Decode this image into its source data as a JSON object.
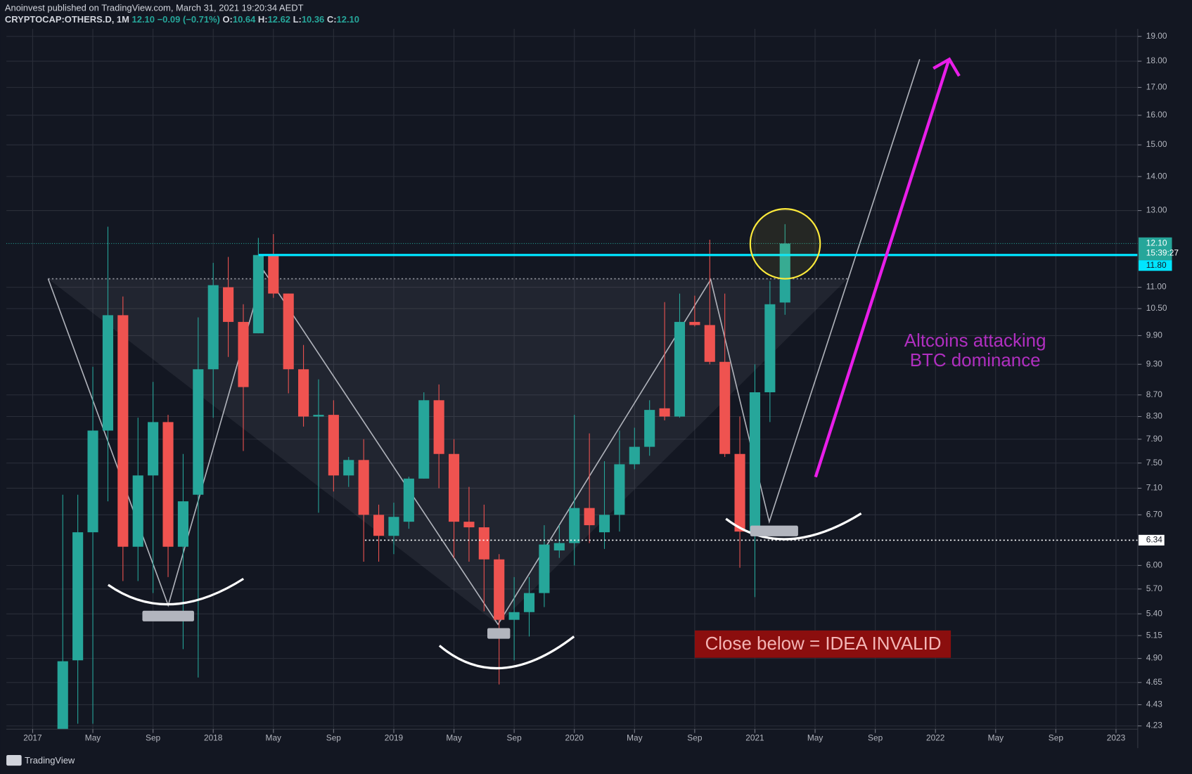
{
  "header": {
    "publisher": "Anoinvest published on TradingView.com, March 31, 2021 19:20:34 AEDT",
    "symbol": "CRYPTOCAP:OTHERS.D, 1M",
    "last": "12.10",
    "change": "−0.09 (−0.71%)",
    "ohlc": [
      {
        "key": "O:",
        "value": "10.64"
      },
      {
        "key": "H:",
        "value": "12.62"
      },
      {
        "key": "L:",
        "value": "10.36"
      },
      {
        "key": "C:",
        "value": "12.10"
      }
    ]
  },
  "chart_data": {
    "type": "candlestick",
    "log_scale": true,
    "grid": true,
    "up_color": "#26a69a",
    "down_color": "#ef5350",
    "x": [
      "2017-03",
      "2017-04",
      "2017-05",
      "2017-06",
      "2017-07",
      "2017-08",
      "2017-09",
      "2017-10",
      "2017-11",
      "2017-12",
      "2018-01",
      "2018-02",
      "2018-03",
      "2018-04",
      "2018-05",
      "2018-06",
      "2018-07",
      "2018-08",
      "2018-09",
      "2018-10",
      "2018-11",
      "2018-12",
      "2019-01",
      "2019-02",
      "2019-03",
      "2019-04",
      "2019-05",
      "2019-06",
      "2019-07",
      "2019-08",
      "2019-09",
      "2019-10",
      "2019-11",
      "2019-12",
      "2020-01",
      "2020-02",
      "2020-03",
      "2020-04",
      "2020-05",
      "2020-06",
      "2020-07",
      "2020-08",
      "2020-09",
      "2020-10",
      "2020-11",
      "2020-12",
      "2021-01",
      "2021-02",
      "2021-03"
    ],
    "open": [
      4.1,
      4.88,
      6.45,
      8.05,
      10.35,
      6.25,
      7.3,
      8.2,
      6.25,
      7.0,
      9.2,
      11.0,
      10.2,
      9.95,
      11.8,
      10.85,
      9.2,
      8.3,
      8.33,
      7.3,
      7.55,
      6.7,
      6.4,
      6.6,
      7.25,
      8.6,
      7.65,
      6.6,
      6.52,
      6.08,
      5.33,
      5.42,
      5.65,
      6.2,
      6.3,
      6.8,
      6.45,
      6.7,
      7.48,
      7.77,
      8.45,
      8.3,
      10.2,
      10.13,
      9.35,
      7.65,
      6.46,
      8.75,
      10.64
    ],
    "high": [
      7.0,
      7.0,
      9.25,
      12.55,
      10.78,
      8.28,
      8.95,
      8.33,
      7.65,
      10.3,
      11.6,
      11.75,
      10.6,
      12.25,
      12.35,
      10.85,
      9.7,
      9.0,
      8.6,
      7.6,
      7.9,
      6.85,
      6.88,
      7.28,
      8.75,
      8.9,
      7.9,
      7.12,
      6.85,
      6.15,
      5.85,
      5.85,
      6.55,
      6.55,
      8.33,
      8.0,
      7.53,
      8.05,
      8.1,
      8.6,
      10.65,
      10.85,
      10.8,
      12.2,
      10.85,
      8.3,
      9.3,
      11.15,
      12.62
    ],
    "low": [
      4.0,
      4.25,
      4.25,
      6.9,
      5.8,
      5.8,
      5.65,
      5.85,
      5.0,
      4.7,
      8.28,
      9.45,
      7.7,
      9.95,
      10.75,
      8.73,
      8.12,
      6.73,
      7.05,
      7.12,
      6.05,
      6.05,
      6.15,
      6.5,
      7.25,
      7.1,
      6.1,
      6.05,
      5.43,
      4.63,
      4.88,
      5.14,
      5.48,
      6.1,
      6.0,
      6.3,
      6.22,
      6.46,
      7.4,
      7.62,
      8.23,
      8.28,
      10.1,
      9.3,
      7.6,
      5.97,
      5.6,
      8.2,
      10.36
    ],
    "close": [
      4.87,
      6.45,
      8.05,
      10.35,
      6.25,
      7.3,
      8.2,
      6.25,
      6.9,
      9.2,
      11.05,
      10.2,
      8.85,
      11.8,
      10.85,
      9.2,
      8.3,
      8.33,
      7.3,
      7.55,
      6.7,
      6.4,
      6.67,
      7.25,
      8.6,
      7.65,
      6.6,
      6.52,
      6.08,
      5.33,
      5.42,
      5.65,
      6.28,
      6.3,
      6.8,
      6.55,
      6.7,
      7.48,
      7.77,
      8.42,
      8.3,
      10.2,
      10.13,
      9.35,
      7.65,
      6.46,
      8.75,
      10.6,
      12.1
    ],
    "ylim": [
      4.2,
      19.25
    ],
    "yticks": [
      {
        "value": 19,
        "label": "19.00"
      },
      {
        "value": 18,
        "label": "18.00"
      },
      {
        "value": 17,
        "label": "17.00"
      },
      {
        "value": 16,
        "label": "16.00"
      },
      {
        "value": 15,
        "label": "15.00"
      },
      {
        "value": 14,
        "label": "14.00"
      },
      {
        "value": 13,
        "label": "13.00"
      },
      {
        "value": 11,
        "label": "11.00"
      },
      {
        "value": 10.5,
        "label": "10.50"
      },
      {
        "value": 9.9,
        "label": "9.90"
      },
      {
        "value": 9.3,
        "label": "9.30"
      },
      {
        "value": 8.7,
        "label": "8.70"
      },
      {
        "value": 8.3,
        "label": "8.30"
      },
      {
        "value": 7.9,
        "label": "7.90"
      },
      {
        "value": 7.5,
        "label": "7.50"
      },
      {
        "value": 7.1,
        "label": "7.10"
      },
      {
        "value": 6.7,
        "label": "6.70"
      },
      {
        "value": 6,
        "label": "6.00"
      },
      {
        "value": 5.7,
        "label": "5.70"
      },
      {
        "value": 5.4,
        "label": "5.40"
      },
      5.15,
      {
        "value": 4.9,
        "label": "4.90"
      },
      4.65,
      4.43,
      4.23
    ],
    "xlim": [
      "2016-11",
      "2023-03"
    ],
    "xticks": [
      {
        "value": "2017-01",
        "label": "2017"
      },
      {
        "value": "2017-05",
        "label": "May"
      },
      {
        "value": "2017-09",
        "label": "Sep"
      },
      {
        "value": "2018-01",
        "label": "2018"
      },
      {
        "value": "2018-05",
        "label": "May"
      },
      {
        "value": "2018-09",
        "label": "Sep"
      },
      {
        "value": "2019-01",
        "label": "2019"
      },
      {
        "value": "2019-05",
        "label": "May"
      },
      {
        "value": "2019-09",
        "label": "Sep"
      },
      {
        "value": "2020-01",
        "label": "2020"
      },
      {
        "value": "2020-05",
        "label": "May"
      },
      {
        "value": "2020-09",
        "label": "Sep"
      },
      {
        "value": "2021-01",
        "label": "2021"
      },
      {
        "value": "2021-05",
        "label": "May"
      },
      {
        "value": "2021-09",
        "label": "Sep"
      },
      {
        "value": "2022-01",
        "label": "2022"
      },
      {
        "value": "2022-05",
        "label": "May"
      },
      {
        "value": "2022-09",
        "label": "Sep"
      },
      {
        "value": "2023-01",
        "label": "2023"
      }
    ],
    "last_price": {
      "value": 12.1,
      "label": "12.10",
      "countdown": "15:39:27",
      "color": "#26a69a"
    },
    "hlines": [
      {
        "value": 11.8,
        "label": "11.80",
        "color": "#00e5ff"
      },
      {
        "value": 6.34,
        "label": "6.34",
        "color": "#ffffff"
      }
    ],
    "annotations": [
      {
        "lines": [
          "Altcoins attacking",
          "BTC dominance"
        ],
        "color": "#b02fc0"
      },
      {
        "text": "Close below = IDEA INVALID"
      }
    ]
  },
  "footer": {
    "brand": "TradingView"
  }
}
